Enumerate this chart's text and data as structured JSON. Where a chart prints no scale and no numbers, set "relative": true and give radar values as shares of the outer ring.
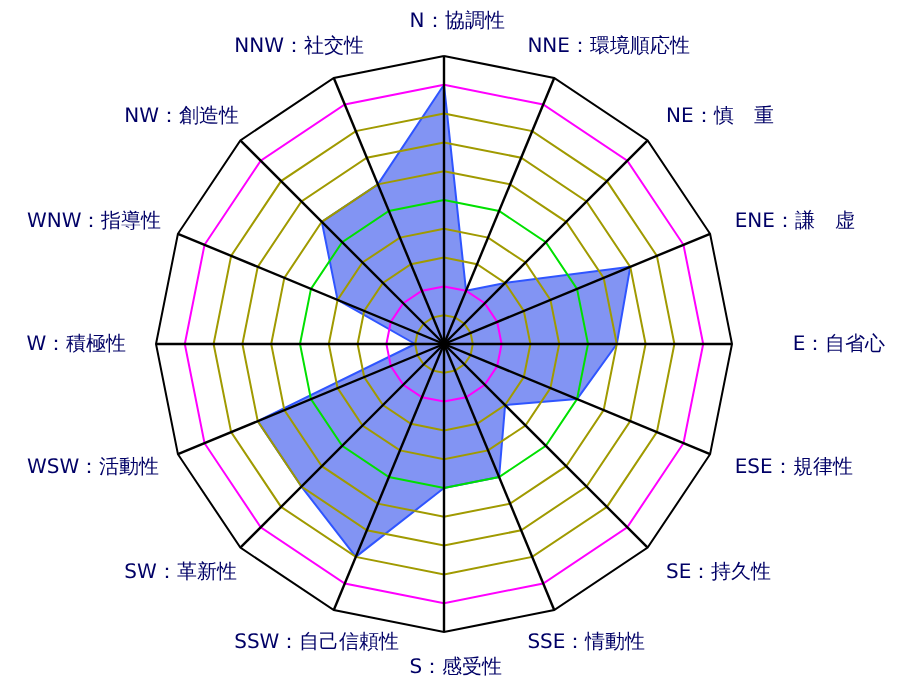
{
  "chart_data": {
    "type": "radar",
    "relative": true,
    "grid": true,
    "categories": [
      "N：協調性",
      "NNE：環境順応性",
      "NE：慎　重",
      "ENE：謙　虚",
      "E：自省心",
      "ESE：規律性",
      "SE：持久性",
      "SSE：情動性",
      "S：感受性",
      "SSW：自己信頼性",
      "SW：革新性",
      "WSW：活動性",
      "W：積極性",
      "WNW：指導性",
      "NW：創造性",
      "NNW：社交性"
    ],
    "series": [
      {
        "color": "#7b8ef2",
        "values": [
          0.9,
          0.2,
          0.3,
          0.7,
          0.6,
          0.5,
          0.3,
          0.5,
          0.5,
          0.8,
          0.7,
          0.7,
          0.1,
          0.4,
          0.6,
          0.6
        ]
      }
    ]
  }
}
